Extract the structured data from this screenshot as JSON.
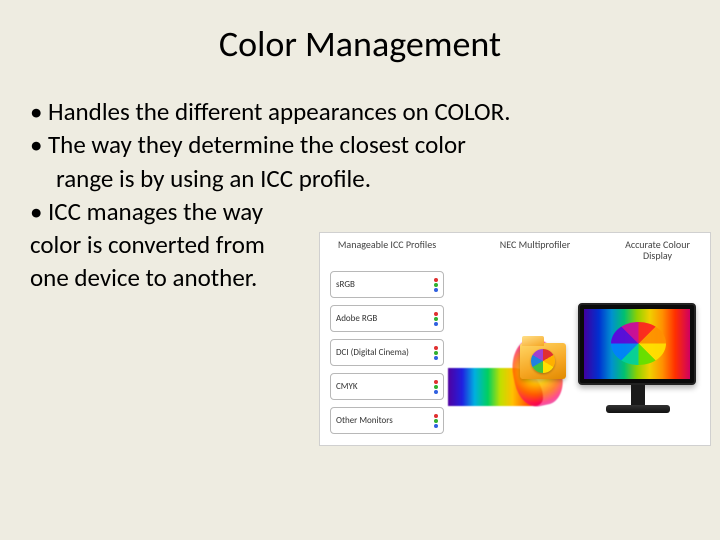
{
  "title": "Color Management",
  "bullets": {
    "b1": "Handles the different appearances on COLOR.",
    "b2": "The way they determine the closest color",
    "b2_cont": "range is by using an ICC profile.",
    "b3": "ICC manages the way",
    "b3_line2": "color is converted from",
    "b3_line3": "one device to another."
  },
  "diagram": {
    "headers": {
      "left": "Manageable ICC Profiles",
      "center": "NEC Multiprofiler",
      "right": "Accurate Colour Display"
    },
    "profiles": {
      "p1": "sRGB",
      "p2": "Adobe RGB",
      "p3": "DCI (Digital Cinema)",
      "p4": "CMYK",
      "p5": "Other Monitors"
    },
    "colors": {
      "slide_bg": "#eeece1",
      "box_border": "#b8b8b8",
      "header_text": "#444444",
      "dot_r": "#e03030",
      "dot_g": "#30b030",
      "dot_b": "#3060e0",
      "folder_start": "#ffd766",
      "folder_end": "#e08900",
      "bezel": "#0a0a0a"
    }
  }
}
